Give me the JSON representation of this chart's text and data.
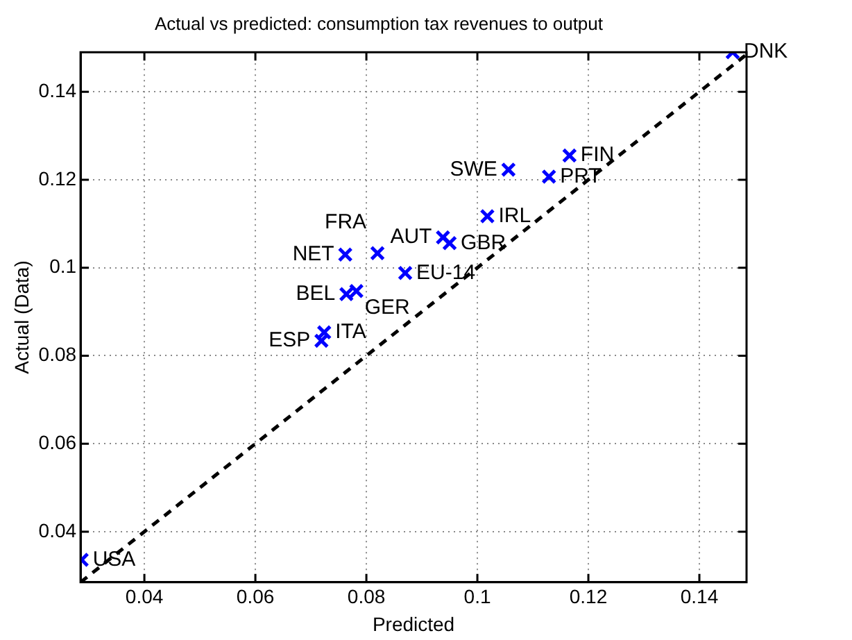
{
  "chart_data": {
    "type": "scatter",
    "title": "Actual vs predicted: consumption tax revenues to output",
    "xlabel": "Predicted",
    "ylabel": "Actual (Data)",
    "xlim": [
      0.0285,
      0.1485
    ],
    "ylim": [
      0.0285,
      0.149
    ],
    "xticks": [
      0.04,
      0.06,
      0.08,
      0.1,
      0.12,
      0.14
    ],
    "yticks": [
      0.04,
      0.06,
      0.08,
      0.1,
      0.12,
      0.14
    ],
    "grid": true,
    "marker": "cross",
    "series": [
      {
        "color": "#0000ff",
        "x": [
          0.146,
          0.1166,
          0.1056,
          0.1129,
          0.1018,
          0.0938,
          0.095,
          0.0762,
          0.082,
          0.087,
          0.0764,
          0.0782,
          0.0724,
          0.0719,
          0.0287
        ],
        "values": [
          0.149,
          0.1255,
          0.1223,
          0.1207,
          0.1117,
          0.1069,
          0.1056,
          0.103,
          0.1033,
          0.0988,
          0.094,
          0.0947,
          0.0853,
          0.0834,
          0.0336
        ]
      },
      {
        "type": "line",
        "color": "#000000",
        "marker": "none",
        "line_style": "dashed",
        "x": [
          0.0285,
          0.1485
        ],
        "values": [
          0.0285,
          0.1485
        ]
      }
    ],
    "annotations": [
      {
        "text": "DNK",
        "x": 0.146,
        "y": 0.149
      },
      {
        "text": "FIN",
        "x": 0.1166,
        "y": 0.1255
      },
      {
        "text": "SWE",
        "x": 0.1056,
        "y": 0.1223
      },
      {
        "text": "PRT",
        "x": 0.1129,
        "y": 0.1207
      },
      {
        "text": "IRL",
        "x": 0.1018,
        "y": 0.1117
      },
      {
        "text": "AUT",
        "x": 0.0938,
        "y": 0.1069
      },
      {
        "text": "GBR",
        "x": 0.095,
        "y": 0.1056
      },
      {
        "text": "NET",
        "x": 0.0762,
        "y": 0.103
      },
      {
        "text": "FRA",
        "x": 0.082,
        "y": 0.1033
      },
      {
        "text": "EU-14",
        "x": 0.087,
        "y": 0.0988
      },
      {
        "text": "BEL",
        "x": 0.0764,
        "y": 0.094
      },
      {
        "text": "GER",
        "x": 0.0782,
        "y": 0.0947
      },
      {
        "text": "ITA",
        "x": 0.0724,
        "y": 0.0853
      },
      {
        "text": "ESP",
        "x": 0.0719,
        "y": 0.0834
      },
      {
        "text": "USA",
        "x": 0.0287,
        "y": 0.0336
      }
    ]
  }
}
